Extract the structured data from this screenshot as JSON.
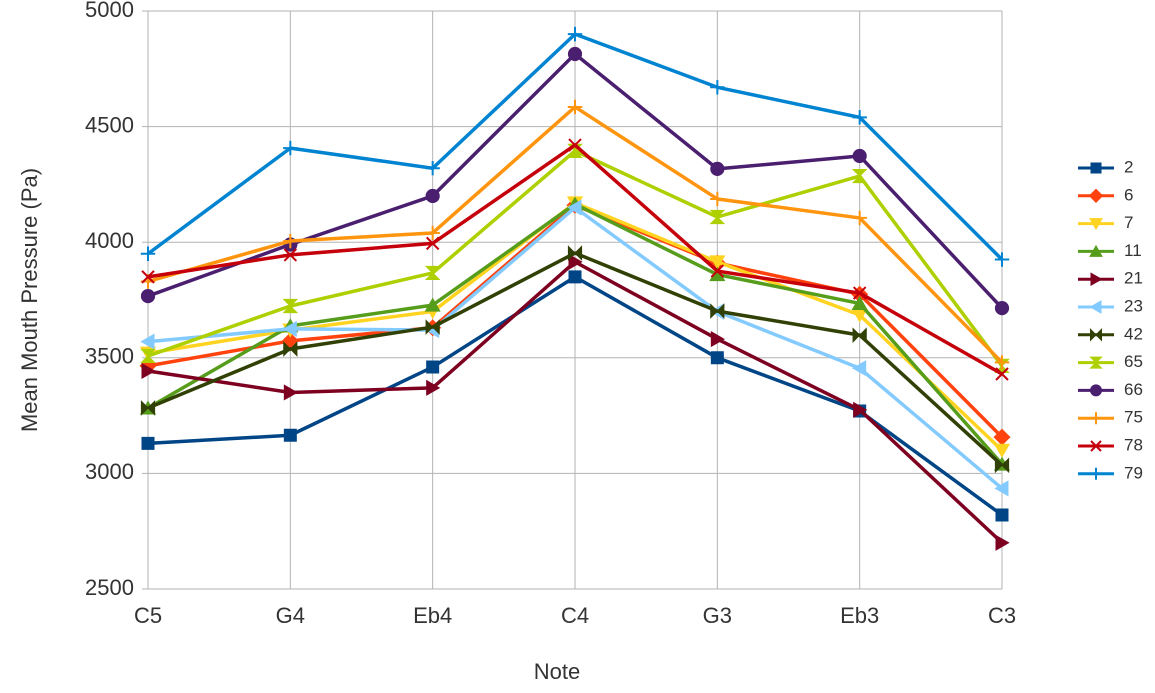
{
  "chart_data": {
    "type": "line",
    "x_label": "Note",
    "y_label": "Mean Mouth Pressure (Pa)",
    "categories": [
      "C5",
      "G4",
      "Eb4",
      "C4",
      "G3",
      "Eb3",
      "C3"
    ],
    "ylim": [
      2500,
      5000
    ],
    "yticks": [
      2500,
      3000,
      3500,
      4000,
      4500,
      5000
    ],
    "grid": true,
    "legend": "right",
    "series": [
      {
        "name": "2",
        "color": "#004586",
        "marker": "square",
        "values": [
          3130,
          3165,
          3460,
          3850,
          3500,
          3270,
          2820
        ]
      },
      {
        "name": "6",
        "color": "#ff420e",
        "marker": "diamond",
        "values": [
          3465,
          3573,
          3630,
          4160,
          3910,
          3775,
          3157
        ]
      },
      {
        "name": "7",
        "color": "#ffd320",
        "marker": "triangle-down",
        "values": [
          3520,
          3620,
          3700,
          4170,
          3915,
          3685,
          3100
        ]
      },
      {
        "name": "11",
        "color": "#579d1c",
        "marker": "triangle-up",
        "values": [
          3283,
          3638,
          3728,
          4165,
          3860,
          3735,
          3040
        ]
      },
      {
        "name": "21",
        "color": "#7e0021",
        "marker": "triangle-right",
        "values": [
          3443,
          3350,
          3370,
          3915,
          3581,
          3275,
          2700
        ]
      },
      {
        "name": "23",
        "color": "#83caff",
        "marker": "triangle-left",
        "values": [
          3570,
          3625,
          3620,
          4150,
          3700,
          3455,
          2935
        ]
      },
      {
        "name": "42",
        "color": "#314004",
        "marker": "bowtie",
        "values": [
          3283,
          3538,
          3633,
          3953,
          3702,
          3598,
          3035
        ]
      },
      {
        "name": "65",
        "color": "#aecf00",
        "marker": "hourglass",
        "values": [
          3508,
          3724,
          3867,
          4395,
          4109,
          4286,
          3465
        ]
      },
      {
        "name": "66",
        "color": "#4b1f6f",
        "marker": "circle",
        "values": [
          3767,
          3990,
          4200,
          4814,
          4317,
          4373,
          3715
        ]
      },
      {
        "name": "75",
        "color": "#ff950e",
        "marker": "plus",
        "values": [
          3830,
          4005,
          4040,
          4585,
          4187,
          4105,
          3480
        ]
      },
      {
        "name": "78",
        "color": "#c5000b",
        "marker": "cross",
        "values": [
          3850,
          3945,
          3995,
          4420,
          3875,
          3780,
          3430
        ]
      },
      {
        "name": "79",
        "color": "#0084d1",
        "marker": "plus",
        "values": [
          3950,
          4407,
          4320,
          4900,
          4670,
          4540,
          3925
        ]
      }
    ]
  }
}
